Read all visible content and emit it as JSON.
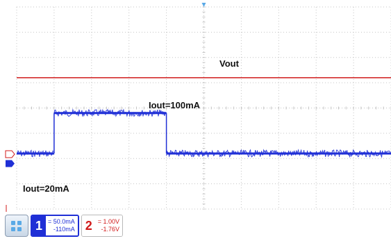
{
  "chart_data": {
    "type": "line",
    "title": "",
    "xlabel": "",
    "ylabel": "",
    "grid": true,
    "annotations": {
      "vout": "Vout",
      "iout_high": "Iout=100mA",
      "iout_low": "Iout=20mA"
    },
    "y_divisions": 8,
    "x_divisions": 10,
    "series": [
      {
        "name": "Vout",
        "channel": 2,
        "color": "#d11a1a",
        "x": [
          0,
          10
        ],
        "y": [
          5.2,
          5.2
        ]
      },
      {
        "name": "Iout",
        "channel": 1,
        "color": "#1f2fd6",
        "x": [
          0,
          1.0,
          1.0,
          4.0,
          4.0,
          10
        ],
        "y": [
          20,
          20,
          100,
          100,
          20,
          20
        ]
      }
    ]
  },
  "statusbar": {
    "ch1": {
      "number": "1",
      "scale": "= 50.0mA",
      "offset": "-110mA"
    },
    "ch2": {
      "number": "2",
      "scale": "= 1.00V",
      "offset": "-1.76V"
    }
  },
  "colors": {
    "ch1": "#1f2fd6",
    "ch2": "#d11a1a",
    "grid": "#c4c4c4"
  },
  "icons": {
    "scope_menu": "scope-grid-icon",
    "ch1_marker": "ch1-ground-marker-icon",
    "ch2_marker": "ch2-ground-marker-icon",
    "trigger": "trigger-marker-icon"
  }
}
